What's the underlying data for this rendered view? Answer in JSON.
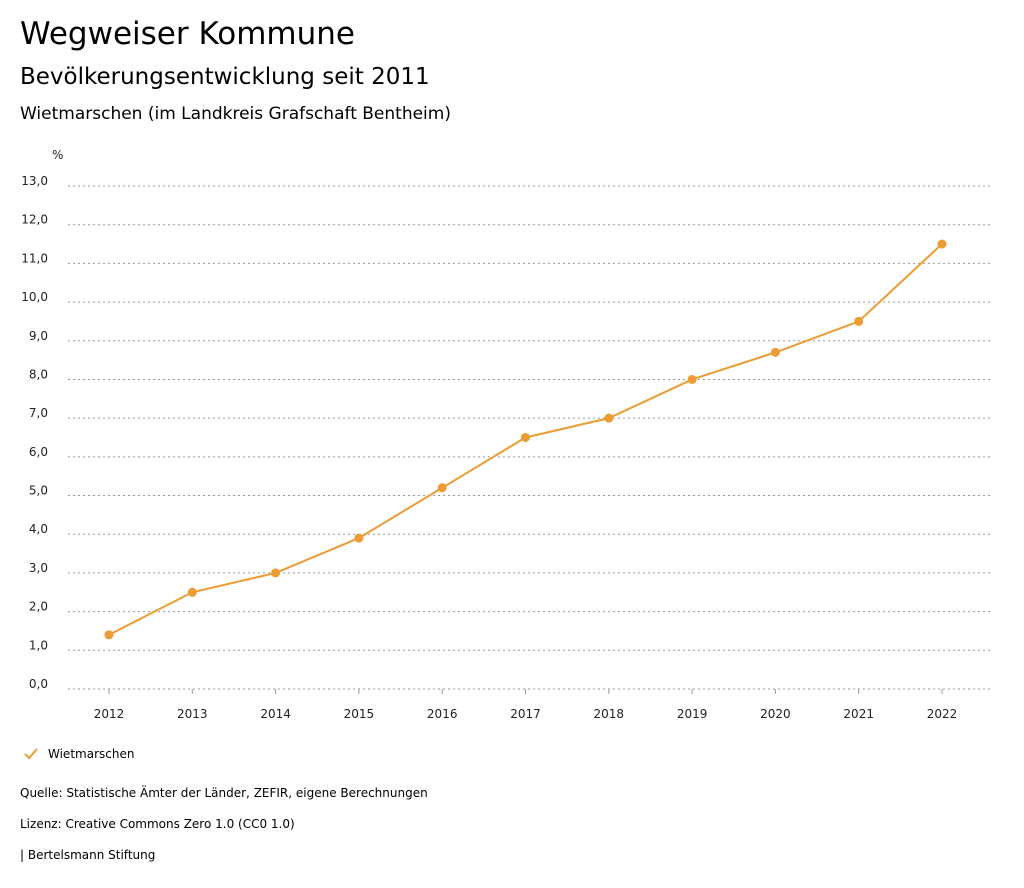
{
  "header": {
    "title": "Wegweiser Kommune",
    "subtitle": "Bevölkerungsentwicklung seit 2011",
    "region": "Wietmarschen (im Landkreis Grafschaft Bentheim)"
  },
  "chart_data": {
    "type": "line",
    "title": "Bevölkerungsentwicklung seit 2011",
    "ylabel": "%",
    "xlabel": "",
    "ylim": [
      0,
      13
    ],
    "yticks": [
      "0,0",
      "1,0",
      "2,0",
      "3,0",
      "4,0",
      "5,0",
      "6,0",
      "7,0",
      "8,0",
      "9,0",
      "10,0",
      "11,0",
      "12,0",
      "13,0"
    ],
    "categories": [
      "2012",
      "2013",
      "2014",
      "2015",
      "2016",
      "2017",
      "2018",
      "2019",
      "2020",
      "2021",
      "2022"
    ],
    "series": [
      {
        "name": "Wietmarschen",
        "color": "#ED9B33",
        "values": [
          1.4,
          2.5,
          3.0,
          3.9,
          5.2,
          6.5,
          7.0,
          8.0,
          8.7,
          9.5,
          11.5
        ]
      }
    ],
    "grid": true,
    "legend_position": "bottom-left"
  },
  "legend": {
    "label": "Wietmarschen",
    "icon": "check-icon"
  },
  "footer": {
    "source": "Quelle: Statistische Ämter der Länder, ZEFIR, eigene Berechnungen",
    "license": "Lizenz: Creative Commons Zero 1.0 (CC0 1.0)",
    "publisher": "| Bertelsmann Stiftung"
  }
}
